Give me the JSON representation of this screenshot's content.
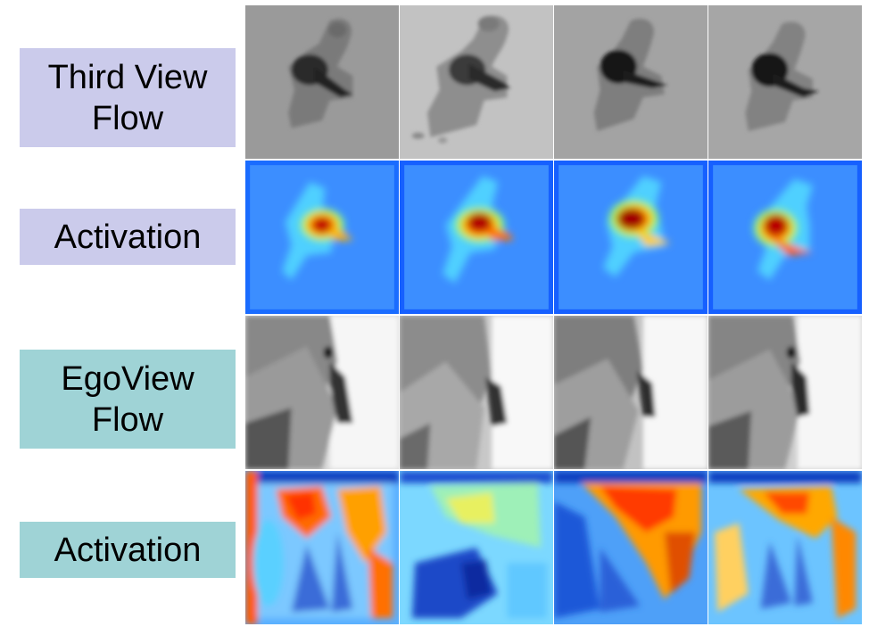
{
  "rows": [
    {
      "label": "Third View\nFlow",
      "kind": "flow-third",
      "color": "#cbcbeb"
    },
    {
      "label": "Activation",
      "kind": "activation-third",
      "color": "#cbcbeb"
    },
    {
      "label": "EgoView\nFlow",
      "kind": "flow-ego",
      "color": "#9fd3d6"
    },
    {
      "label": "Activation",
      "kind": "activation-ego",
      "color": "#9fd3d6"
    }
  ]
}
